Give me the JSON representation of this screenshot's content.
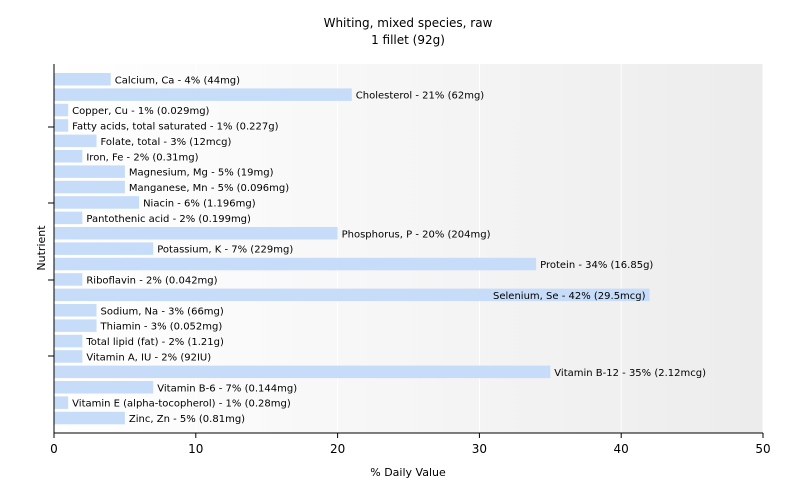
{
  "chart_data": {
    "type": "bar",
    "orientation": "horizontal",
    "title": "Whiting, mixed species, raw",
    "subtitle": "1 fillet (92g)",
    "xlabel": "% Daily Value",
    "ylabel": "Nutrient",
    "xlim": [
      0,
      50
    ],
    "xticks": [
      0,
      10,
      20,
      30,
      40,
      50
    ],
    "grid": true,
    "bar_color": "#c6dcf8",
    "bars": [
      {
        "value": 4,
        "label": "Calcium, Ca - 4% (44mg)"
      },
      {
        "value": 21,
        "label": "Cholesterol - 21% (62mg)"
      },
      {
        "value": 1,
        "label": "Copper, Cu - 1% (0.029mg)"
      },
      {
        "value": 1,
        "label": "Fatty acids, total saturated - 1% (0.227g)"
      },
      {
        "value": 3,
        "label": "Folate, total - 3% (12mcg)"
      },
      {
        "value": 2,
        "label": "Iron, Fe - 2% (0.31mg)"
      },
      {
        "value": 5,
        "label": "Magnesium, Mg - 5% (19mg)"
      },
      {
        "value": 5,
        "label": "Manganese, Mn - 5% (0.096mg)"
      },
      {
        "value": 6,
        "label": "Niacin - 6% (1.196mg)"
      },
      {
        "value": 2,
        "label": "Pantothenic acid - 2% (0.199mg)"
      },
      {
        "value": 20,
        "label": "Phosphorus, P - 20% (204mg)"
      },
      {
        "value": 7,
        "label": "Potassium, K - 7% (229mg)"
      },
      {
        "value": 34,
        "label": "Protein - 34% (16.85g)"
      },
      {
        "value": 2,
        "label": "Riboflavin - 2% (0.042mg)"
      },
      {
        "value": 42,
        "label": "Selenium, Se - 42% (29.5mcg)"
      },
      {
        "value": 3,
        "label": "Sodium, Na - 3% (66mg)"
      },
      {
        "value": 3,
        "label": "Thiamin - 3% (0.052mg)"
      },
      {
        "value": 2,
        "label": "Total lipid (fat) - 2% (1.21g)"
      },
      {
        "value": 2,
        "label": "Vitamin A, IU - 2% (92IU)"
      },
      {
        "value": 35,
        "label": "Vitamin B-12 - 35% (2.12mcg)"
      },
      {
        "value": 7,
        "label": "Vitamin B-6 - 7% (0.144mg)"
      },
      {
        "value": 1,
        "label": "Vitamin E (alpha-tocopherol) - 1% (0.28mg)"
      },
      {
        "value": 5,
        "label": "Zinc, Zn - 5% (0.81mg)"
      }
    ]
  }
}
